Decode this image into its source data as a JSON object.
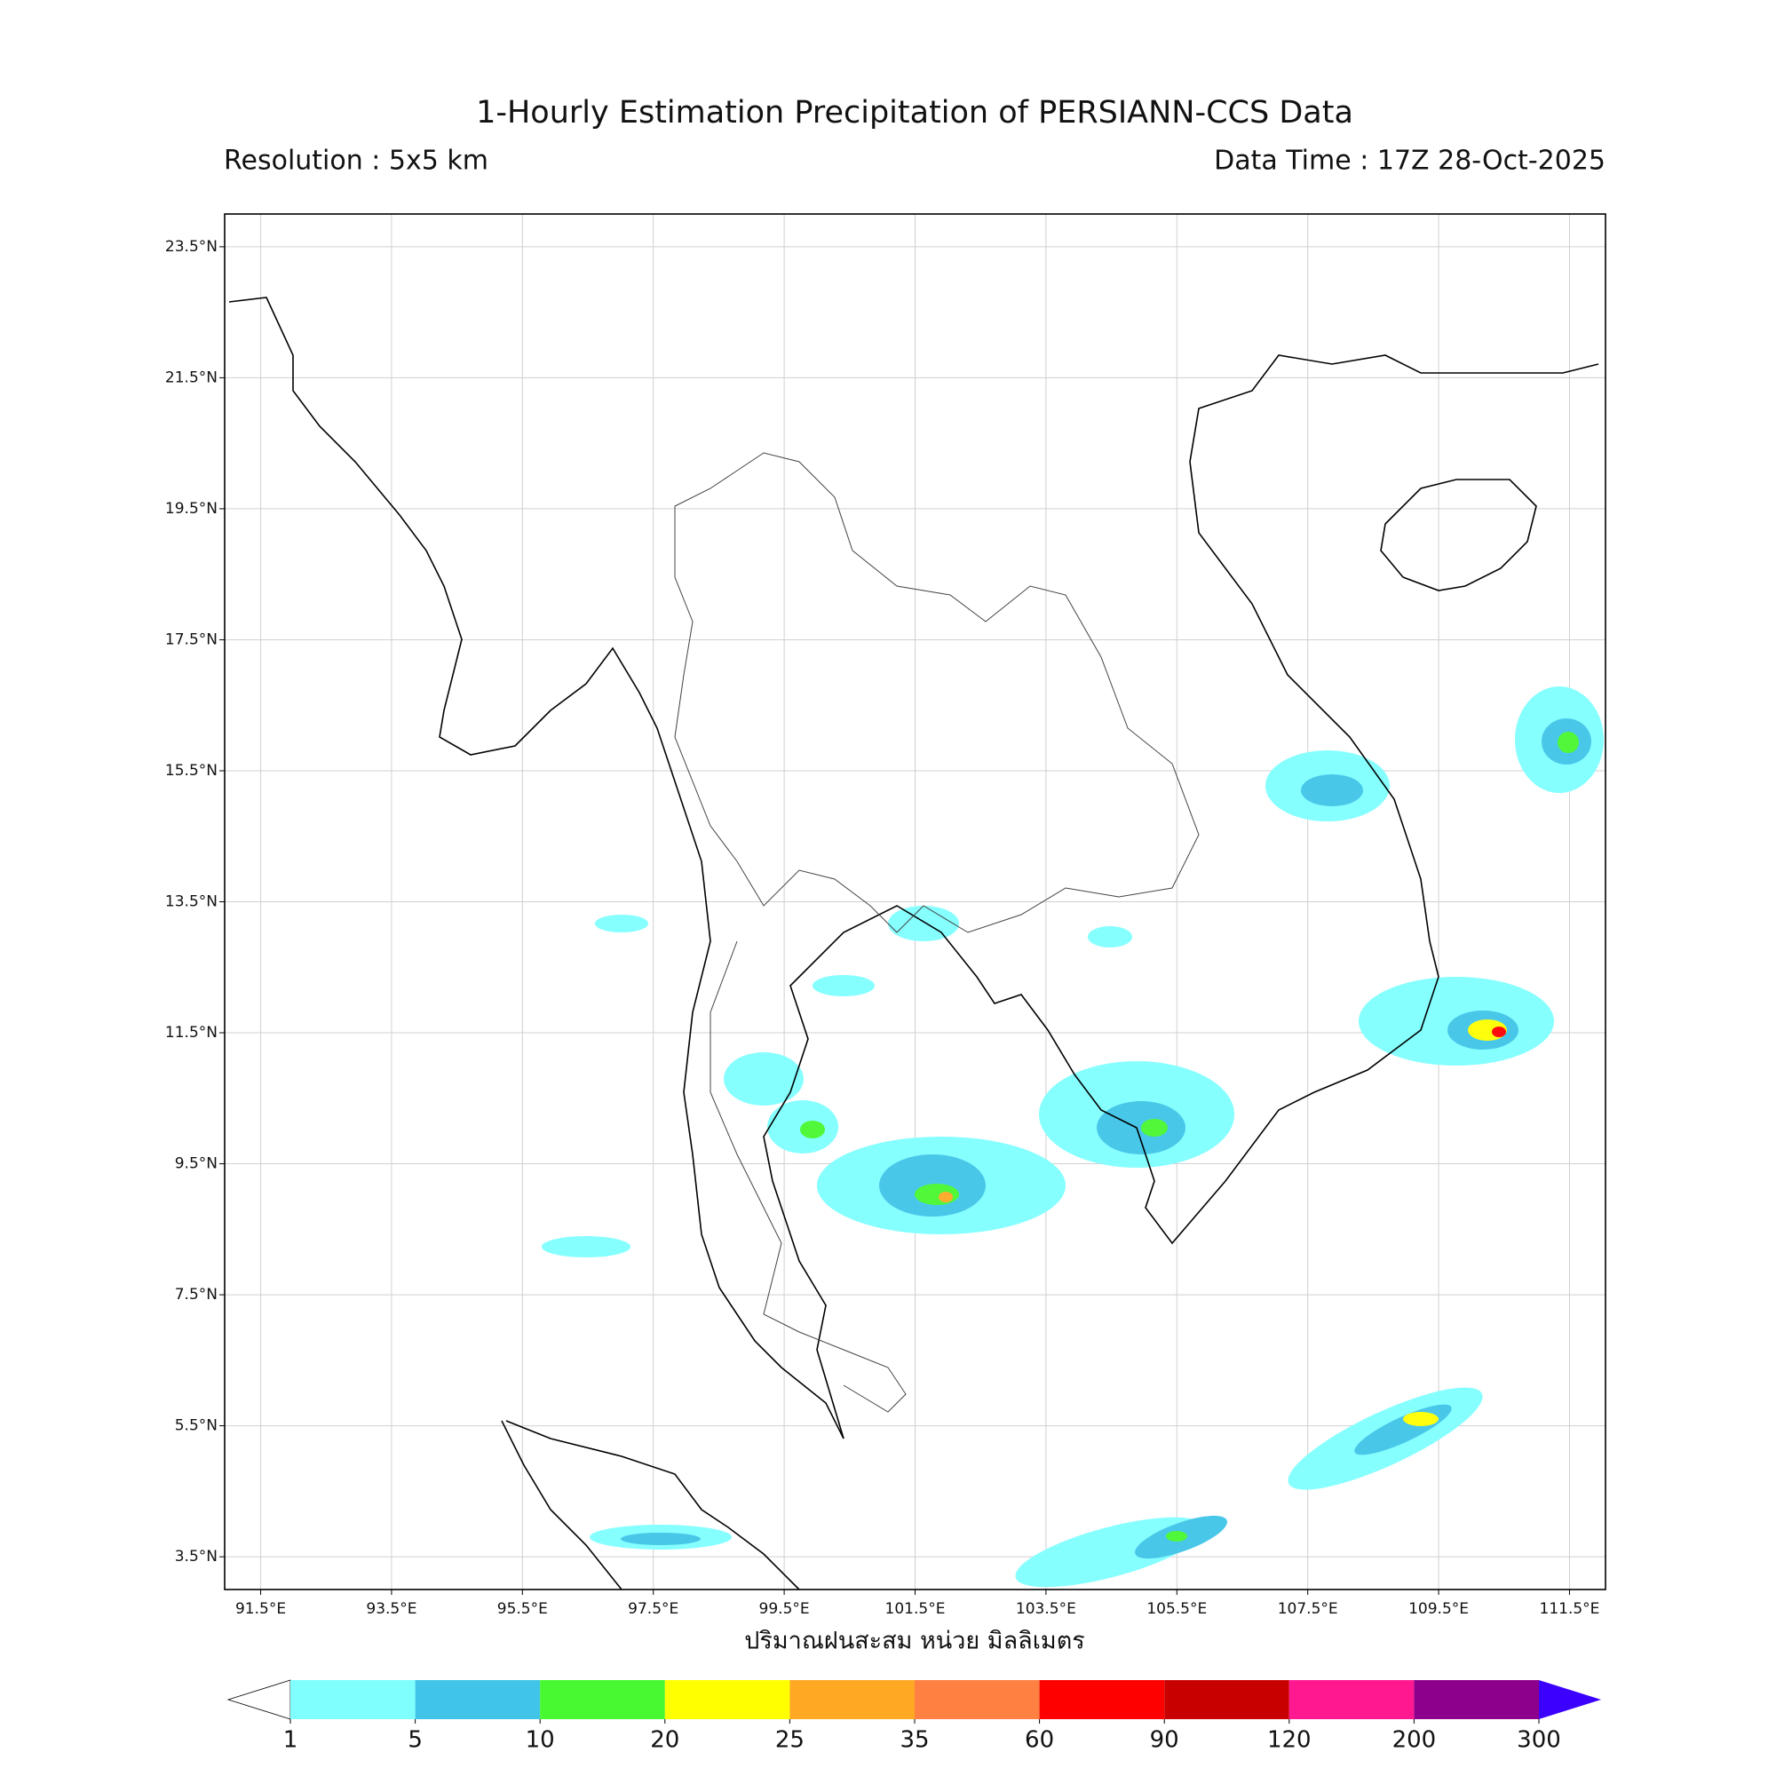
{
  "header": {
    "title": "1-Hourly Estimation Precipitation of PERSIANN-CCS Data",
    "resolution": "Resolution : 5x5 km",
    "data_time": "Data Time : 17Z 28-Oct-2025"
  },
  "map": {
    "xlim": [
      90.95,
      112.05
    ],
    "ylim": [
      3.0,
      24.0
    ],
    "xticks": [
      {
        "value": 91.5,
        "label": "91.5°E"
      },
      {
        "value": 93.5,
        "label": "93.5°E"
      },
      {
        "value": 95.5,
        "label": "95.5°E"
      },
      {
        "value": 97.5,
        "label": "97.5°E"
      },
      {
        "value": 99.5,
        "label": "99.5°E"
      },
      {
        "value": 101.5,
        "label": "101.5°E"
      },
      {
        "value": 103.5,
        "label": "103.5°E"
      },
      {
        "value": 105.5,
        "label": "105.5°E"
      },
      {
        "value": 107.5,
        "label": "107.5°E"
      },
      {
        "value": 109.5,
        "label": "109.5°E"
      },
      {
        "value": 111.5,
        "label": "111.5°E"
      }
    ],
    "yticks": [
      {
        "value": 3.5,
        "label": "3.5°N"
      },
      {
        "value": 5.5,
        "label": "5.5°N"
      },
      {
        "value": 7.5,
        "label": "7.5°N"
      },
      {
        "value": 9.5,
        "label": "9.5°N"
      },
      {
        "value": 11.5,
        "label": "11.5°N"
      },
      {
        "value": 13.5,
        "label": "13.5°N"
      },
      {
        "value": 15.5,
        "label": "15.5°N"
      },
      {
        "value": 17.5,
        "label": "17.5°N"
      },
      {
        "value": 19.5,
        "label": "19.5°N"
      },
      {
        "value": 21.5,
        "label": "21.5°N"
      },
      {
        "value": 23.5,
        "label": "23.5°N"
      }
    ],
    "grid": true
  },
  "colorbar": {
    "label": "ปริมาณฝนสะสม หน่วย มิลลิเมตร",
    "levels": [
      1,
      5,
      10,
      20,
      25,
      35,
      60,
      90,
      120,
      200,
      300
    ],
    "colors": [
      "#80ffff",
      "#40c4e8",
      "#48f830",
      "#ffff00",
      "#ffa824",
      "#ff8040",
      "#ff0000",
      "#c80000",
      "#ff1890",
      "#8c008c"
    ],
    "under_color": "#ffffff",
    "over_color": "#3c00ff"
  }
}
